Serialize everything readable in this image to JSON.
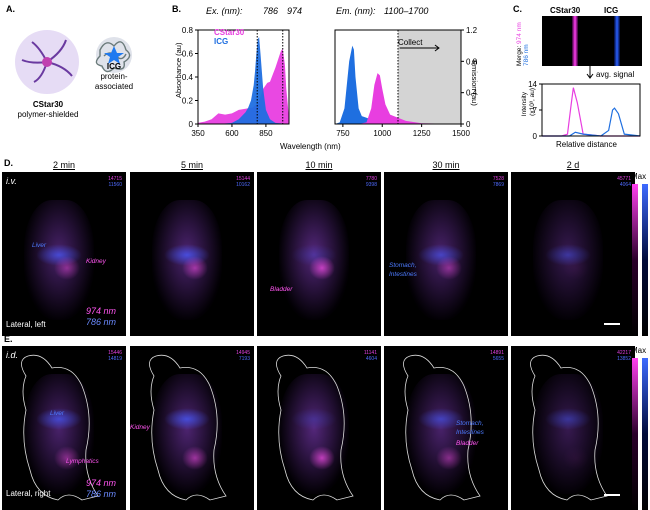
{
  "panels": {
    "A": "A.",
    "B": "B.",
    "C": "C.",
    "D": "D.",
    "E": "E."
  },
  "panelA": {
    "cstar30_name": "CStar30",
    "cstar30_sub": "polymer-shielded",
    "icg_name": "ICG",
    "icg_sub1": "protein-",
    "icg_sub2": "associated"
  },
  "panelB": {
    "ex_label": "Ex. (nm):",
    "ex_786": "786",
    "ex_974": "974",
    "em_label": "Em. (nm):",
    "em_range": "1100–1700",
    "legend_cstar": "CStar30",
    "legend_icg": "ICG",
    "collect": "Collect",
    "ylabel_left": "Absorbance (au)",
    "ylabel_right": "Emission (au)",
    "xlabel": "Wavelength (nm)",
    "colors": {
      "cstar": "#e83ee0",
      "icg": "#1f6fe0"
    }
  },
  "panelC": {
    "col1": "CStar30",
    "col2": "ICG",
    "merge": "Merge:",
    "nm974": "974 nm",
    "nm786": "786 nm",
    "avg": "avg. signal",
    "ylabel1": "Intensity",
    "ylabel2": "(x10³, au)",
    "xlabel": "Relative distance",
    "yticks": [
      "0",
      "7",
      "14"
    ]
  },
  "chart_data": [
    {
      "type": "area",
      "title": "",
      "xlabel": "Wavelength (nm)",
      "ylabel": "Absorbance (au)",
      "xlim": [
        350,
        1020
      ],
      "ylim": [
        0,
        0.8
      ],
      "xticks": [
        "350",
        "600",
        "850"
      ],
      "yticks": [
        "0",
        "0.2",
        "0.4",
        "0.6",
        "0.8"
      ],
      "series": [
        {
          "name": "CStar30",
          "x": [
            350,
            400,
            450,
            500,
            550,
            600,
            650,
            700,
            750,
            786,
            800,
            830,
            860,
            880,
            900,
            920,
            940,
            960,
            974,
            990,
            1000,
            1020
          ],
          "y": [
            0.01,
            0.02,
            0.04,
            0.09,
            0.08,
            0.09,
            0.12,
            0.13,
            0.14,
            0.17,
            0.2,
            0.3,
            0.35,
            0.36,
            0.42,
            0.48,
            0.55,
            0.62,
            0.64,
            0.5,
            0.3,
            0.05
          ]
        },
        {
          "name": "ICG",
          "x": [
            350,
            500,
            600,
            650,
            700,
            720,
            740,
            760,
            770,
            780,
            790,
            800,
            810,
            830,
            850,
            880,
            920,
            1020
          ],
          "y": [
            0,
            0,
            0.01,
            0.04,
            0.1,
            0.14,
            0.2,
            0.33,
            0.45,
            0.6,
            0.72,
            0.74,
            0.6,
            0.3,
            0.12,
            0.04,
            0.01,
            0
          ]
        }
      ]
    },
    {
      "type": "area",
      "title": "",
      "xlabel": "Wavelength (nm)",
      "ylabel": "Emission (au)",
      "xlim": [
        700,
        1500
      ],
      "ylim": [
        0,
        1.2
      ],
      "xticks": [
        "750",
        "1000",
        "1250",
        "1500"
      ],
      "yticks": [
        "0",
        "0.4",
        "0.8",
        "1.2"
      ],
      "series": [
        {
          "name": "ICG",
          "x": [
            700,
            730,
            760,
            790,
            810,
            820,
            830,
            850,
            870,
            900,
            950,
            1000,
            1100,
            1500
          ],
          "y": [
            0,
            0.02,
            0.2,
            0.8,
            1.0,
            0.95,
            0.6,
            0.2,
            0.1,
            0.08,
            0.04,
            0.02,
            0.01,
            0
          ]
        },
        {
          "name": "CStar30",
          "x": [
            700,
            850,
            900,
            930,
            950,
            970,
            985,
            1000,
            1020,
            1050,
            1100,
            1150,
            1250,
            1500
          ],
          "y": [
            0,
            0,
            0.02,
            0.2,
            0.5,
            0.65,
            0.62,
            0.45,
            0.25,
            0.12,
            0.08,
            0.04,
            0.01,
            0
          ]
        }
      ]
    },
    {
      "type": "line",
      "title": "",
      "xlabel": "Relative distance",
      "ylabel": "Intensity (x10³, au)",
      "xlim": [
        0,
        1
      ],
      "ylim": [
        0,
        14
      ],
      "yticks": [
        "0",
        "7",
        "14"
      ],
      "series": [
        {
          "name": "974 nm",
          "x": [
            0,
            0.2,
            0.26,
            0.3,
            0.32,
            0.36,
            0.42,
            0.6,
            0.7,
            1
          ],
          "y": [
            0,
            0,
            0.5,
            9,
            13,
            9,
            0.5,
            0,
            0,
            0
          ]
        },
        {
          "name": "786 nm",
          "x": [
            0,
            0.28,
            0.34,
            0.42,
            0.6,
            0.68,
            0.72,
            0.74,
            0.78,
            0.84,
            1
          ],
          "y": [
            0,
            0,
            1,
            0.5,
            0,
            1.5,
            7,
            7.5,
            6,
            0.5,
            0
          ]
        }
      ]
    }
  ],
  "panelD": {
    "route": "i.v.",
    "timepoints": [
      "2 min",
      "5 min",
      "10 min",
      "30 min",
      "2 d"
    ],
    "counts": [
      [
        "14715",
        "11560"
      ],
      [
        "15144",
        "10162"
      ],
      [
        "7780",
        "9398"
      ],
      [
        "7528",
        "7869"
      ],
      [
        "45771",
        "4064"
      ]
    ],
    "organs": {
      "liver": "Liver",
      "kidney": "Kidney",
      "bladder": "Bladder",
      "stomach": "Stomach,",
      "intestines": "Intestines"
    },
    "nm974": "974 nm",
    "nm786": "786 nm",
    "view": "Lateral, left",
    "max": "Max"
  },
  "panelE": {
    "route": "i.d.",
    "counts": [
      [
        "15446",
        "14819"
      ],
      [
        "14945",
        "7193"
      ],
      [
        "11141",
        "4604"
      ],
      [
        "14891",
        "5655"
      ],
      [
        "42217",
        "13852"
      ]
    ],
    "organs": {
      "liver": "Liver",
      "lymphatics": "Lymphatics",
      "kidney": "Kidney",
      "stomach": "Stomach,",
      "intestines": "Intestines",
      "bladder": "Bladder"
    },
    "nm974": "974 nm",
    "nm786": "786 nm",
    "view": "Lateral, right",
    "max": "Max"
  }
}
